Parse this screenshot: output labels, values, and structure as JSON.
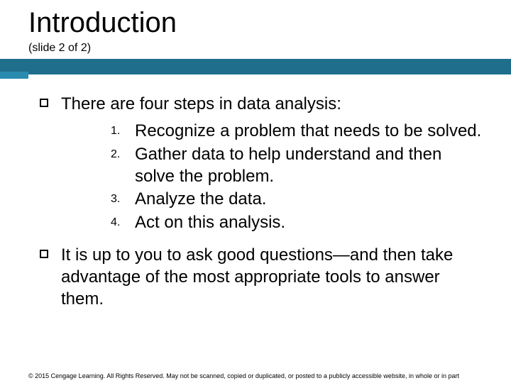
{
  "colors": {
    "bar_dark": "#1f6e8c",
    "bar_light": "#2a8bb0",
    "text": "#000000",
    "background": "#ffffff"
  },
  "typography": {
    "title_fontsize": 40,
    "subtitle_fontsize": 16,
    "body_fontsize": 24,
    "number_label_fontsize": 16,
    "footer_fontsize": 9,
    "font_family": "Arial"
  },
  "title": "Introduction",
  "subtitle": "(slide 2 of 2)",
  "bullets": [
    {
      "text": "There are four steps in data analysis:",
      "numbered": [
        "Recognize a problem that needs to be solved.",
        "Gather data to help understand and then solve the problem.",
        "Analyze the data.",
        "Act on this analysis."
      ]
    },
    {
      "text": "It is up to you to ask good questions—and then take advantage of the most appropriate tools to answer them."
    }
  ],
  "footer": "© 2015 Cengage Learning. All Rights Reserved. May not be scanned, copied or duplicated, or posted to a publicly accessible website, in whole or in part"
}
